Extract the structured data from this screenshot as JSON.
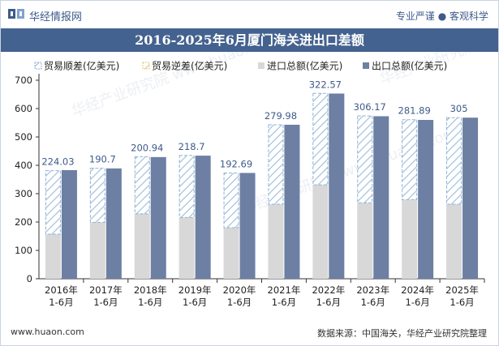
{
  "header": {
    "brand": "华经情报网",
    "slogan": "专业严谨 ● 客观科学"
  },
  "title": "2016-2025年6月厦门海关进出口差额",
  "footer": {
    "website": "www.huaon.com",
    "source": "数据来源：中国海关，华经产业研究院整理"
  },
  "watermark": "华经产业研究院 www.huaon.com",
  "colors": {
    "header_bg": "#44628f",
    "export_bar": "#6d7fa3",
    "import_bar": "#d8d8d8",
    "surplus_stroke": "#8fb4d4",
    "deficit_stroke": "#e8c38a"
  },
  "chart_data": {
    "type": "bar",
    "categories": [
      "2016年\n1-6月",
      "2017年\n1-6月",
      "2018年\n1-6月",
      "2019年\n1-6月",
      "2020年\n1-6月",
      "2021年\n1-6月",
      "2022年\n1-6月",
      "2023年\n1-6月",
      "2024年\n1-6月",
      "2025年\n1-6月"
    ],
    "series": [
      {
        "name": "贸易顺差(亿美元)",
        "values": [
          224.03,
          190.7,
          200.94,
          218.7,
          192.69,
          279.98,
          322.57,
          306.17,
          281.89,
          305
        ]
      },
      {
        "name": "贸易逆差(亿美元)",
        "values": [
          0,
          0,
          0,
          0,
          0,
          0,
          0,
          0,
          0,
          0
        ]
      },
      {
        "name": "进口总额(亿美元)",
        "values": [
          157,
          199,
          229,
          216,
          180,
          263,
          331,
          268,
          279,
          263
        ]
      },
      {
        "name": "出口总额(亿美元)",
        "values": [
          383,
          389,
          429,
          434,
          373,
          543,
          653,
          573,
          560,
          568
        ]
      }
    ],
    "data_labels": [
      "224.03",
      "190.7",
      "200.94",
      "218.7",
      "192.69",
      "279.98",
      "322.57",
      "306.17",
      "281.89",
      "305"
    ],
    "yticks": [
      0,
      100,
      200,
      300,
      400,
      500,
      600,
      700
    ],
    "ylim": [
      0,
      700
    ],
    "legend_position": "top",
    "grid": false
  }
}
